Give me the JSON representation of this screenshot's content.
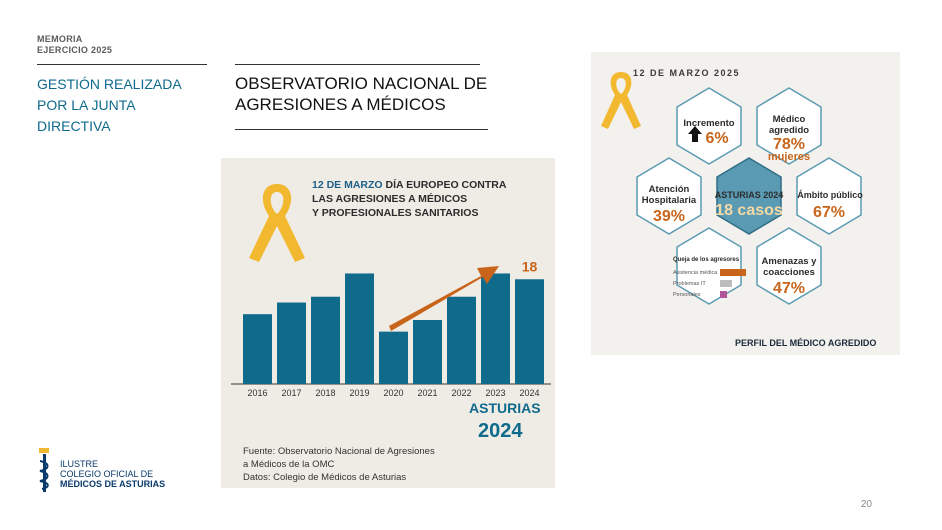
{
  "header": {
    "memoria": "MEMORIA",
    "ejercicio": "EJERCICIO 2025"
  },
  "section_title": "GESTIÓN REALIZADA POR LA JUNTA DIRECTIVA",
  "page_title_line1": "OBSERVATORIO NACIONAL DE",
  "page_title_line2": "AGRESIONES A MÉDICOS",
  "logo": {
    "line1": "ILUSTRE",
    "line2": "COLEGIO OFICIAL DE",
    "line3": "MÉDICOS DE ASTURIAS"
  },
  "page_number": "20",
  "colors": {
    "teal": "#0f6a8c",
    "orange": "#c8651b",
    "ribbon": "#f2b830",
    "hex_fill": "#ffffff",
    "center_hex": "#5a9ab2"
  },
  "infographic1": {
    "date": "12 DE MARZO",
    "headline_rest": " DÍA EUROPEO CONTRA",
    "headline2": "LAS AGRESIONES A MÉDICOS",
    "headline3": "Y PROFESIONALES SANITARIOS",
    "highlight_value": "18",
    "region": "ASTURIAS",
    "year": "2024",
    "source1": "Fuente: Observatorio Nacional de Agresiones",
    "source2": "a Médicos de la OMC",
    "source3": "Datos: Colegio de Médicos de Asturias"
  },
  "chart_data": {
    "type": "bar",
    "categories": [
      "2016",
      "2017",
      "2018",
      "2019",
      "2020",
      "2021",
      "2022",
      "2023",
      "2024"
    ],
    "values": [
      12,
      14,
      15,
      19,
      9,
      11,
      15,
      19,
      18
    ],
    "ylim": [
      0,
      22
    ],
    "title": "",
    "xlabel": "",
    "ylabel": "",
    "annotation": "18"
  },
  "infographic2": {
    "date": "12 DE MARZO 2025",
    "incremento_label": "Incremento",
    "incremento_value": "6%",
    "medico_label1": "Médico",
    "medico_label2": "agredido",
    "medico_value": "78%",
    "medico_sub": "mujeres",
    "atencion_label1": "Atención",
    "atencion_label2": "Hospitalaria",
    "atencion_value": "39%",
    "center_label": "ASTURIAS 2024",
    "center_value": "18 casos",
    "ambito_label": "Ámbito público",
    "ambito_value": "67%",
    "queja_title": "Queja de los agresores",
    "queja_items": [
      "Asistencia médica",
      "Problemas IT",
      "Personales"
    ],
    "amenazas_label1": "Amenazas y",
    "amenazas_label2": "coacciones",
    "amenazas_value": "47%",
    "footer": "PERFIL DEL MÉDICO AGREDIDO"
  }
}
